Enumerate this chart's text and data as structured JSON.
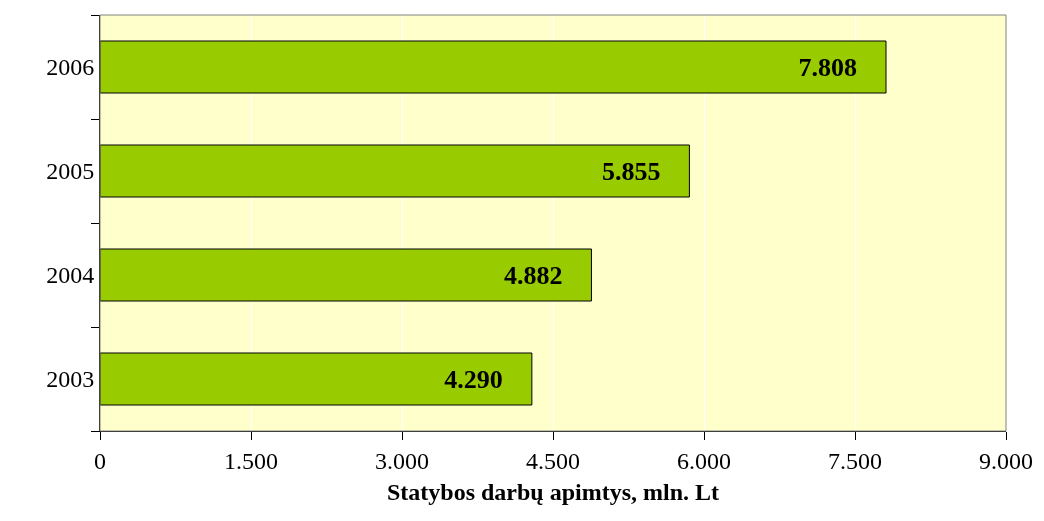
{
  "chart_data": {
    "type": "bar",
    "orientation": "horizontal",
    "xlabel": "Statybos darbų apimtys, mln. Lt",
    "categories": [
      "2006",
      "2005",
      "2004",
      "2003"
    ],
    "values": [
      7808,
      5855,
      4882,
      4290
    ],
    "value_labels": [
      "7.808",
      "5.855",
      "4.882",
      "4.290"
    ],
    "color": "#99cc00",
    "xlim": [
      0,
      9000
    ],
    "xticks": [
      0,
      {
        "value": 1500,
        "label": "1.500"
      },
      {
        "value": 3000,
        "label": "3.000"
      },
      {
        "value": 4500,
        "label": "4.500"
      },
      {
        "value": 6000,
        "label": "6.000"
      },
      {
        "value": 7500,
        "label": "7.500"
      },
      {
        "value": 9000,
        "label": "9.000"
      }
    ],
    "grid": "x"
  }
}
